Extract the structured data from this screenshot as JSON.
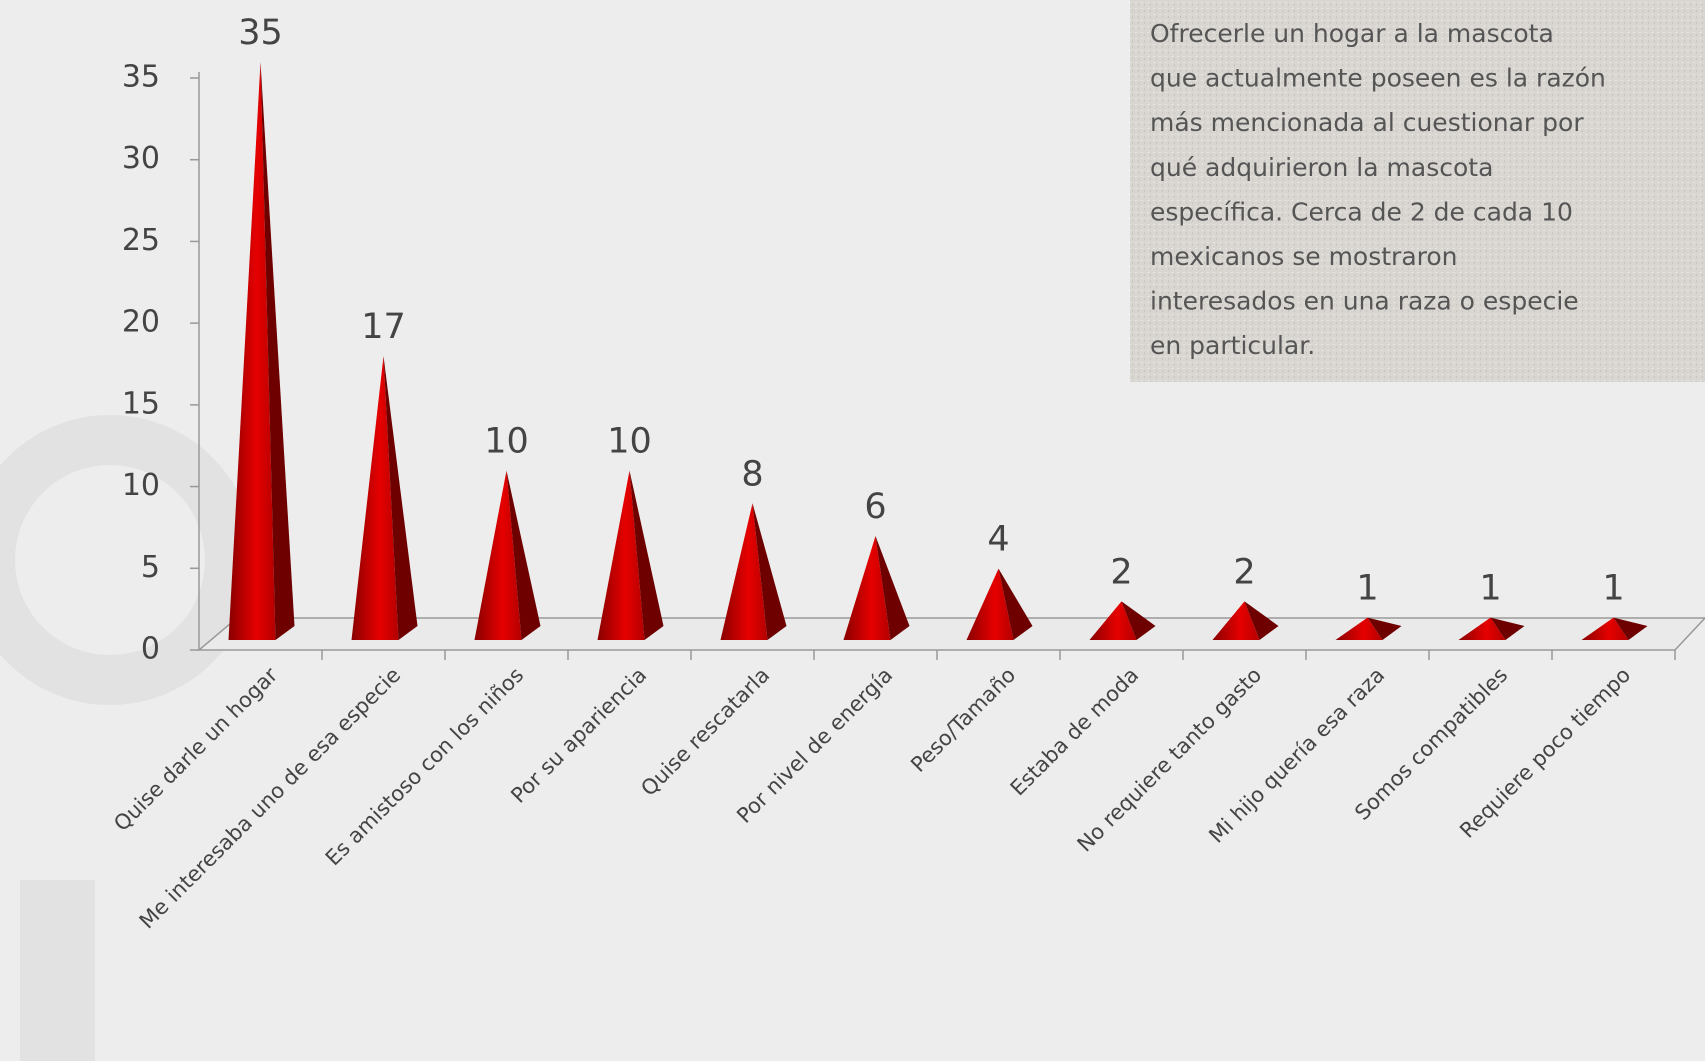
{
  "chart_data": {
    "type": "cone",
    "categories": [
      "Quise darle un hogar",
      "Me interesaba uno de esa especie",
      "Es amistoso con los niños",
      "Por su apariencia",
      "Quise rescatarla",
      "Por nivel de energía",
      "Peso/Tamaño",
      "Estaba de moda",
      "No requiere tanto gasto",
      "Mi hijo quería esa raza",
      "Somos compatibles",
      "Requiere poco tiempo"
    ],
    "values": [
      35,
      17,
      10,
      10,
      8,
      6,
      4,
      2,
      2,
      1,
      1,
      1
    ],
    "color": "#d10000",
    "ylim": [
      0,
      35
    ],
    "yticks": [
      0,
      5,
      10,
      15,
      20,
      25,
      30,
      35
    ],
    "annotation": [
      "Ofrecerle un hogar a la mascota",
      "que actualmente poseen es la razón",
      "más mencionada al cuestionar por",
      "qué adquirieron la mascota",
      "específica. Cerca de 2 de cada 10",
      "mexicanos se mostraron",
      "interesados en una raza o especie",
      "en particular."
    ]
  }
}
